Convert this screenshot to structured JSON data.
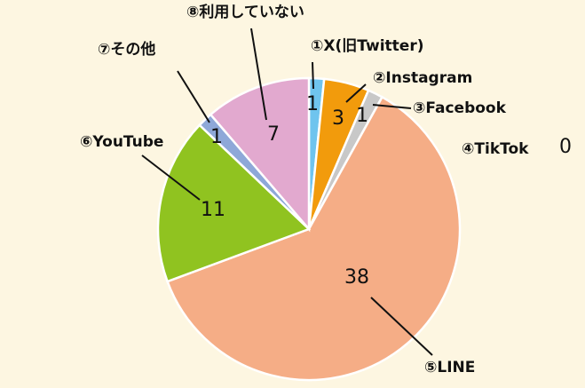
{
  "chart_data": {
    "type": "pie",
    "categories": [
      "①X(旧Twitter)",
      "②Instagram",
      "③Facebook",
      "④TikTok",
      "⑤LINE",
      "⑥YouTube",
      "⑦その他",
      "⑧利用していない"
    ],
    "values": [
      1,
      3,
      1,
      0,
      38,
      11,
      1,
      7
    ],
    "colors": [
      "#6fc4ee",
      "#f29b0c",
      "#c8c8c8",
      "#999999",
      "#f5ad86",
      "#90c320",
      "#8ea8d8",
      "#e2a9cf"
    ]
  }
}
